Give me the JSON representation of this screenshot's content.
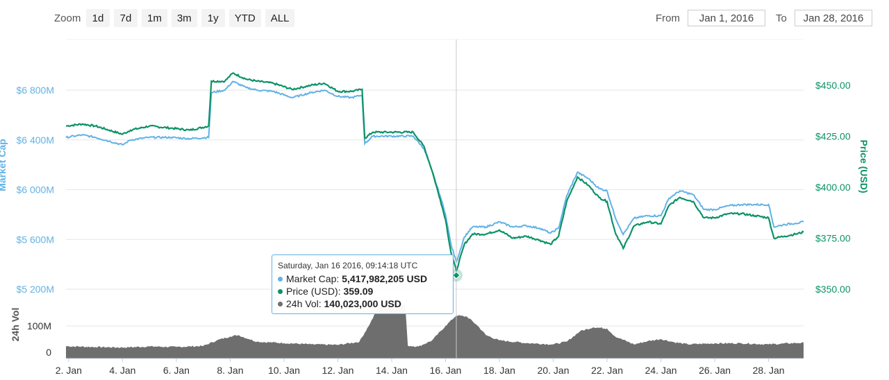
{
  "toolbar": {
    "zoom_label": "Zoom",
    "zoom_buttons": [
      "1d",
      "7d",
      "1m",
      "3m",
      "1y",
      "YTD",
      "ALL"
    ],
    "from_label": "From",
    "from_value": "Jan 1, 2016",
    "to_label": "To",
    "to_value": "Jan 28, 2016"
  },
  "tooltip": {
    "header": "Saturday, Jan 16 2016, 09:14:18 UTC",
    "rows": [
      {
        "label": "Market Cap: ",
        "value": "5,417,982,205 USD",
        "color": "#61b2e6"
      },
      {
        "label": "Price (USD): ",
        "value": "359.09",
        "color": "#0c9268"
      },
      {
        "label": "24h Vol: ",
        "value": "140,023,000 USD",
        "color": "#6e6e6e"
      }
    ]
  },
  "colors": {
    "market_cap": "#61b2e6",
    "price": "#0c9268",
    "volume": "#6e6e6e",
    "grid": "#e6e6e6"
  },
  "chart_data": {
    "type": "line",
    "x_axis": {
      "ticks": [
        "2. Jan",
        "4. Jan",
        "6. Jan",
        "8. Jan",
        "10. Jan",
        "12. Jan",
        "14. Jan",
        "16. Jan",
        "18. Jan",
        "20. Jan",
        "22. Jan",
        "24. Jan",
        "26. Jan",
        "28. Jan"
      ],
      "range_days": [
        1.9,
        29.3
      ]
    },
    "y_left": {
      "label": "Market Cap",
      "ticks": [
        "$5 200M",
        "$5 600M",
        "$6 000M",
        "$6 400M",
        "$6 800M"
      ],
      "tick_values": [
        5200,
        5600,
        6000,
        6400,
        6800
      ],
      "unit": "M USD",
      "range": [
        5200,
        6800
      ]
    },
    "y_right": {
      "label": "Price (USD)",
      "ticks": [
        "$350.00",
        "$375.00",
        "$400.00",
        "$425.00",
        "$450.00"
      ],
      "tick_values": [
        350,
        375,
        400,
        425,
        450
      ],
      "range": [
        350,
        450
      ]
    },
    "y_volume": {
      "label": "24h Vol",
      "ticks": [
        "0",
        "100M"
      ],
      "tick_values": [
        0,
        100
      ],
      "unit": "M USD"
    },
    "series": [
      {
        "name": "Market Cap",
        "axis": "left",
        "points": [
          [
            1.9,
            6420
          ],
          [
            2.5,
            6440
          ],
          [
            3.0,
            6420
          ],
          [
            3.5,
            6390
          ],
          [
            4.0,
            6360
          ],
          [
            4.3,
            6400
          ],
          [
            5.0,
            6420
          ],
          [
            5.8,
            6420
          ],
          [
            6.5,
            6410
          ],
          [
            7.2,
            6420
          ],
          [
            7.3,
            6780
          ],
          [
            7.8,
            6800
          ],
          [
            8.1,
            6870
          ],
          [
            8.6,
            6820
          ],
          [
            9.0,
            6800
          ],
          [
            9.6,
            6790
          ],
          [
            10.3,
            6740
          ],
          [
            11.0,
            6780
          ],
          [
            11.5,
            6800
          ],
          [
            12.0,
            6750
          ],
          [
            12.5,
            6740
          ],
          [
            12.9,
            6760
          ],
          [
            13.0,
            6370
          ],
          [
            13.3,
            6430
          ],
          [
            14.0,
            6430
          ],
          [
            14.8,
            6430
          ],
          [
            15.2,
            6330
          ],
          [
            15.5,
            6150
          ],
          [
            15.8,
            5950
          ],
          [
            16.0,
            5800
          ],
          [
            16.2,
            5560
          ],
          [
            16.4,
            5418
          ],
          [
            16.7,
            5620
          ],
          [
            17.0,
            5700
          ],
          [
            17.5,
            5700
          ],
          [
            18.0,
            5740
          ],
          [
            18.5,
            5700
          ],
          [
            19.0,
            5710
          ],
          [
            19.5,
            5690
          ],
          [
            19.9,
            5650
          ],
          [
            20.2,
            5690
          ],
          [
            20.5,
            5950
          ],
          [
            20.9,
            6140
          ],
          [
            21.3,
            6090
          ],
          [
            21.7,
            6010
          ],
          [
            22.0,
            5990
          ],
          [
            22.3,
            5780
          ],
          [
            22.6,
            5640
          ],
          [
            23.0,
            5770
          ],
          [
            23.5,
            5790
          ],
          [
            24.0,
            5790
          ],
          [
            24.3,
            5930
          ],
          [
            24.7,
            5990
          ],
          [
            25.2,
            5960
          ],
          [
            25.6,
            5840
          ],
          [
            26.0,
            5840
          ],
          [
            26.5,
            5870
          ],
          [
            27.0,
            5880
          ],
          [
            27.5,
            5880
          ],
          [
            28.0,
            5880
          ],
          [
            28.2,
            5700
          ],
          [
            28.6,
            5720
          ],
          [
            29.0,
            5730
          ],
          [
            29.3,
            5740
          ]
        ]
      },
      {
        "name": "Price (USD)",
        "axis": "right",
        "points": [
          [
            1.9,
            430
          ],
          [
            2.5,
            431
          ],
          [
            3.0,
            430
          ],
          [
            3.5,
            428
          ],
          [
            4.0,
            426
          ],
          [
            4.3,
            428
          ],
          [
            5.0,
            430
          ],
          [
            5.8,
            429
          ],
          [
            6.5,
            428
          ],
          [
            7.2,
            430
          ],
          [
            7.3,
            452
          ],
          [
            7.8,
            452
          ],
          [
            8.1,
            456
          ],
          [
            8.6,
            453
          ],
          [
            9.0,
            452
          ],
          [
            9.6,
            451
          ],
          [
            10.3,
            448
          ],
          [
            11.0,
            450
          ],
          [
            11.5,
            451
          ],
          [
            12.0,
            447
          ],
          [
            12.5,
            447
          ],
          [
            12.9,
            448
          ],
          [
            13.0,
            424
          ],
          [
            13.3,
            427
          ],
          [
            14.0,
            427
          ],
          [
            14.8,
            427
          ],
          [
            15.2,
            420
          ],
          [
            15.5,
            408
          ],
          [
            15.8,
            394
          ],
          [
            16.0,
            384
          ],
          [
            16.2,
            368
          ],
          [
            16.4,
            359
          ],
          [
            16.7,
            372
          ],
          [
            17.0,
            377
          ],
          [
            17.5,
            377
          ],
          [
            18.0,
            379
          ],
          [
            18.5,
            375
          ],
          [
            19.0,
            376
          ],
          [
            19.5,
            374
          ],
          [
            19.9,
            372
          ],
          [
            20.2,
            376
          ],
          [
            20.5,
            393
          ],
          [
            20.9,
            405
          ],
          [
            21.3,
            401
          ],
          [
            21.7,
            395
          ],
          [
            22.0,
            393
          ],
          [
            22.3,
            378
          ],
          [
            22.6,
            370
          ],
          [
            23.0,
            381
          ],
          [
            23.5,
            383
          ],
          [
            24.0,
            382
          ],
          [
            24.3,
            391
          ],
          [
            24.7,
            395
          ],
          [
            25.2,
            393
          ],
          [
            25.6,
            385
          ],
          [
            26.0,
            385
          ],
          [
            26.5,
            387
          ],
          [
            27.0,
            387
          ],
          [
            27.5,
            386
          ],
          [
            28.0,
            385
          ],
          [
            28.2,
            375
          ],
          [
            28.6,
            376
          ],
          [
            29.0,
            377
          ],
          [
            29.3,
            378
          ]
        ]
      },
      {
        "name": "24h Vol",
        "axis": "volume",
        "points": [
          [
            1.9,
            23
          ],
          [
            3.0,
            20
          ],
          [
            4.0,
            18
          ],
          [
            5.0,
            22
          ],
          [
            6.0,
            20
          ],
          [
            7.0,
            24
          ],
          [
            7.5,
            45
          ],
          [
            8.0,
            60
          ],
          [
            8.3,
            65
          ],
          [
            8.7,
            50
          ],
          [
            9.0,
            40
          ],
          [
            10.0,
            35
          ],
          [
            11.0,
            30
          ],
          [
            12.0,
            28
          ],
          [
            12.8,
            40
          ],
          [
            13.2,
            110
          ],
          [
            13.5,
            170
          ],
          [
            14.0,
            200
          ],
          [
            14.5,
            180
          ],
          [
            14.6,
            25
          ],
          [
            15.0,
            22
          ],
          [
            15.5,
            45
          ],
          [
            16.0,
            100
          ],
          [
            16.4,
            140
          ],
          [
            16.8,
            135
          ],
          [
            17.2,
            100
          ],
          [
            17.5,
            65
          ],
          [
            18.0,
            45
          ],
          [
            19.0,
            35
          ],
          [
            20.0,
            30
          ],
          [
            20.5,
            40
          ],
          [
            21.0,
            80
          ],
          [
            21.5,
            95
          ],
          [
            22.0,
            90
          ],
          [
            22.3,
            60
          ],
          [
            23.0,
            30
          ],
          [
            23.5,
            42
          ],
          [
            24.0,
            50
          ],
          [
            24.5,
            38
          ],
          [
            25.0,
            30
          ],
          [
            26.0,
            34
          ],
          [
            27.0,
            34
          ],
          [
            28.0,
            30
          ],
          [
            29.0,
            35
          ],
          [
            29.3,
            36
          ]
        ]
      }
    ],
    "crosshair_x": 16.4
  }
}
